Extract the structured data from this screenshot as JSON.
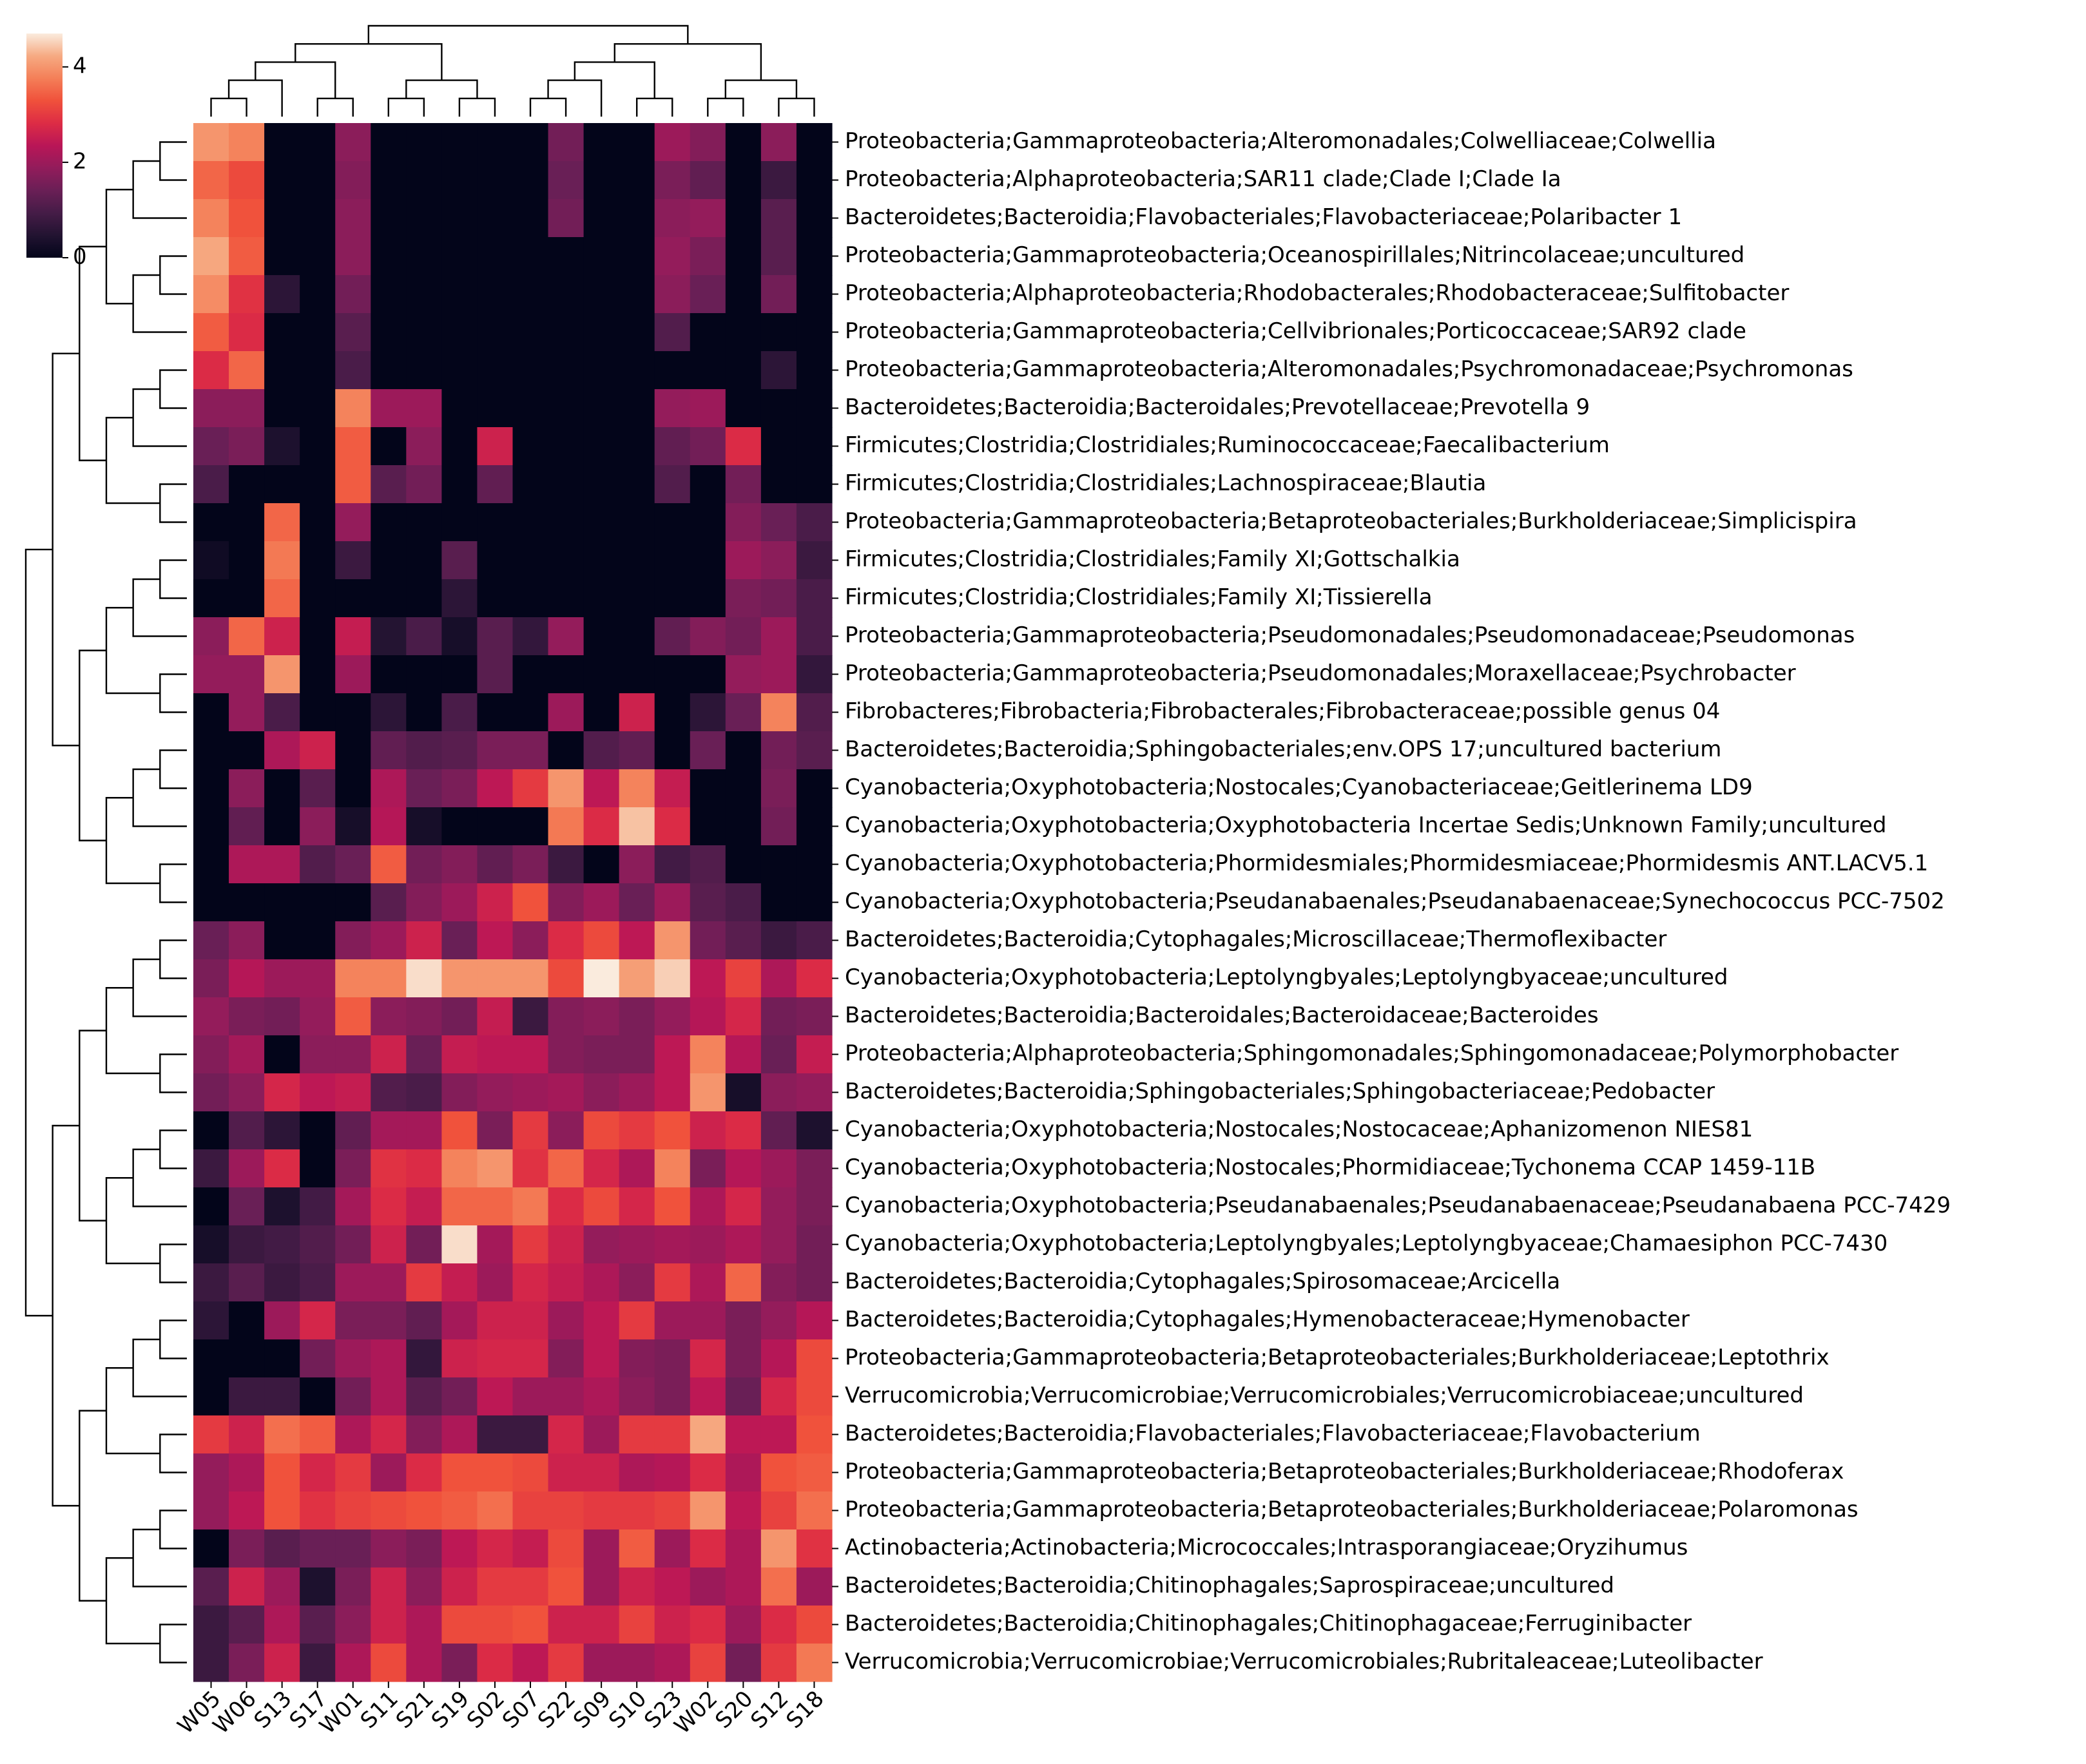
{
  "chart_data": {
    "type": "heatmap",
    "columns": [
      "W05",
      "W06",
      "S13",
      "S17",
      "W01",
      "S11",
      "S21",
      "S19",
      "S02",
      "S07",
      "S22",
      "S09",
      "S10",
      "S23",
      "W02",
      "S20",
      "S12",
      "S18"
    ],
    "rows": [
      "Proteobacteria;Gammaproteobacteria;Alteromonadales;Colwelliaceae;Colwellia",
      "Proteobacteria;Alphaproteobacteria;SAR11 clade;Clade I;Clade Ia",
      "Bacteroidetes;Bacteroidia;Flavobacteriales;Flavobacteriaceae;Polaribacter 1",
      "Proteobacteria;Gammaproteobacteria;Oceanospirillales;Nitrincolaceae;uncultured",
      "Proteobacteria;Alphaproteobacteria;Rhodobacterales;Rhodobacteraceae;Sulfitobacter",
      "Proteobacteria;Gammaproteobacteria;Cellvibrionales;Porticoccaceae;SAR92 clade",
      "Proteobacteria;Gammaproteobacteria;Alteromonadales;Psychromonadaceae;Psychromonas",
      "Bacteroidetes;Bacteroidia;Bacteroidales;Prevotellaceae;Prevotella 9",
      "Firmicutes;Clostridia;Clostridiales;Ruminococcaceae;Faecalibacterium",
      "Firmicutes;Clostridia;Clostridiales;Lachnospiraceae;Blautia",
      "Proteobacteria;Gammaproteobacteria;Betaproteobacteriales;Burkholderiaceae;Simplicispira",
      "Firmicutes;Clostridia;Clostridiales;Family XI;Gottschalkia",
      "Firmicutes;Clostridia;Clostridiales;Family XI;Tissierella",
      "Proteobacteria;Gammaproteobacteria;Pseudomonadales;Pseudomonadaceae;Pseudomonas",
      "Proteobacteria;Gammaproteobacteria;Pseudomonadales;Moraxellaceae;Psychrobacter",
      "Fibrobacteres;Fibrobacteria;Fibrobacterales;Fibrobacteraceae;possible genus 04",
      "Bacteroidetes;Bacteroidia;Sphingobacteriales;env.OPS 17;uncultured bacterium",
      "Cyanobacteria;Oxyphotobacteria;Nostocales;Cyanobacteriaceae;Geitlerinema LD9",
      "Cyanobacteria;Oxyphotobacteria;Oxyphotobacteria Incertae Sedis;Unknown Family;uncultured",
      "Cyanobacteria;Oxyphotobacteria;Phormidesmiales;Phormidesmiaceae;Phormidesmis ANT.LACV5.1",
      "Cyanobacteria;Oxyphotobacteria;Pseudanabaenales;Pseudanabaenaceae;Synechococcus PCC-7502",
      "Bacteroidetes;Bacteroidia;Cytophagales;Microscillaceae;Thermoflexibacter",
      "Cyanobacteria;Oxyphotobacteria;Leptolyngbyales;Leptolyngbyaceae;uncultured",
      "Bacteroidetes;Bacteroidia;Bacteroidales;Bacteroidaceae;Bacteroides",
      "Proteobacteria;Alphaproteobacteria;Sphingomonadales;Sphingomonadaceae;Polymorphobacter",
      "Bacteroidetes;Bacteroidia;Sphingobacteriales;Sphingobacteriaceae;Pedobacter",
      "Cyanobacteria;Oxyphotobacteria;Nostocales;Nostocaceae;Aphanizomenon NIES81",
      "Cyanobacteria;Oxyphotobacteria;Nostocales;Phormidiaceae;Tychonema CCAP 1459-11B",
      "Cyanobacteria;Oxyphotobacteria;Pseudanabaenales;Pseudanabaenaceae;Pseudanabaena PCC-7429",
      "Cyanobacteria;Oxyphotobacteria;Leptolyngbyales;Leptolyngbyaceae;Chamaesiphon PCC-7430",
      "Bacteroidetes;Bacteroidia;Cytophagales;Spirosomaceae;Arcicella",
      "Bacteroidetes;Bacteroidia;Cytophagales;Hymenobacteraceae;Hymenobacter",
      "Proteobacteria;Gammaproteobacteria;Betaproteobacteriales;Burkholderiaceae;Leptothrix",
      "Verrucomicrobia;Verrucomicrobiae;Verrucomicrobiales;Verrucomicrobiaceae;uncultured",
      "Bacteroidetes;Bacteroidia;Flavobacteriales;Flavobacteriaceae;Flavobacterium",
      "Proteobacteria;Gammaproteobacteria;Betaproteobacteriales;Burkholderiaceae;Rhodoferax",
      "Proteobacteria;Gammaproteobacteria;Betaproteobacteriales;Burkholderiaceae;Polaromonas",
      "Actinobacteria;Actinobacteria;Micrococcales;Intrasporangiaceae;Oryzihumus",
      "Bacteroidetes;Bacteroidia;Chitinophagales;Saprospiraceae;uncultured",
      "Bacteroidetes;Bacteroidia;Chitinophagales;Chitinophagaceae;Ferruginibacter",
      "Verrucomicrobia;Verrucomicrobiae;Verrucomicrobiales;Rubritaleaceae;Luteolibacter"
    ],
    "values": [
      [
        4.0,
        3.8,
        0,
        0,
        1.8,
        0,
        0,
        0,
        0,
        0,
        1.5,
        0,
        0,
        2.0,
        1.7,
        0,
        1.8,
        0
      ],
      [
        3.5,
        3.2,
        0,
        0,
        1.7,
        0,
        0,
        0,
        0,
        0,
        1.4,
        0,
        0,
        1.6,
        1.3,
        0,
        0.8,
        0
      ],
      [
        3.8,
        3.3,
        0,
        0,
        1.8,
        0,
        0,
        0,
        0,
        0,
        1.5,
        0,
        0,
        1.8,
        1.9,
        0,
        1.2,
        0
      ],
      [
        4.2,
        3.4,
        0,
        0,
        1.8,
        0,
        0,
        0,
        0,
        0,
        0,
        0,
        0,
        1.9,
        1.6,
        0,
        1.2,
        0
      ],
      [
        3.9,
        2.9,
        0.6,
        0,
        1.5,
        0,
        0,
        0,
        0,
        0,
        0,
        0,
        0,
        1.8,
        1.4,
        0,
        1.5,
        0
      ],
      [
        3.4,
        2.8,
        0,
        0,
        1.2,
        0,
        0,
        0,
        0,
        0,
        0,
        0,
        0,
        1.1,
        0,
        0,
        0,
        0
      ],
      [
        2.8,
        3.5,
        0,
        0,
        1.0,
        0,
        0,
        0,
        0,
        0,
        0,
        0,
        0,
        0,
        0,
        0,
        0.6,
        0
      ],
      [
        1.8,
        1.8,
        0,
        0,
        3.8,
        2.0,
        2.0,
        0,
        0,
        0,
        0,
        0,
        0,
        1.9,
        2.0,
        0,
        0,
        0
      ],
      [
        1.4,
        1.6,
        0.4,
        0,
        3.4,
        0,
        1.8,
        0,
        2.6,
        0,
        0,
        0,
        0,
        1.3,
        1.5,
        2.8,
        0,
        0
      ],
      [
        1.0,
        0,
        0,
        0,
        3.4,
        1.2,
        1.5,
        0,
        1.3,
        0,
        0,
        0,
        0,
        1.1,
        0,
        1.5,
        0,
        0
      ],
      [
        0,
        0,
        3.5,
        0,
        1.9,
        0,
        0,
        0,
        0,
        0,
        0,
        0,
        0,
        0,
        0,
        1.7,
        1.4,
        1.0
      ],
      [
        0.2,
        0,
        3.7,
        0,
        0.8,
        0,
        0,
        1.2,
        0,
        0,
        0,
        0,
        0,
        0,
        0,
        2.0,
        1.8,
        0.8
      ],
      [
        0,
        0,
        3.5,
        0,
        0,
        0,
        0,
        0.6,
        0,
        0,
        0,
        0,
        0,
        0,
        0,
        1.6,
        1.5,
        1.0
      ],
      [
        1.8,
        3.5,
        2.6,
        0,
        2.5,
        0.5,
        1.0,
        0.3,
        1.2,
        0.7,
        1.9,
        0,
        0,
        1.3,
        1.7,
        1.5,
        2.0,
        1.0
      ],
      [
        1.9,
        1.9,
        4.0,
        0,
        2.0,
        0,
        0,
        0,
        1.2,
        0,
        0,
        0,
        0,
        0,
        0,
        1.9,
        2.0,
        0.7
      ],
      [
        0,
        1.9,
        1.0,
        0,
        0,
        0.6,
        0,
        1.0,
        0,
        0,
        2.0,
        0,
        2.6,
        0,
        0.6,
        1.4,
        3.8,
        1.1
      ],
      [
        0,
        0,
        2.2,
        2.6,
        0,
        1.3,
        1.1,
        1.2,
        1.6,
        1.6,
        0,
        1.1,
        1.3,
        0,
        1.4,
        0,
        1.5,
        1.2
      ],
      [
        0,
        1.8,
        0,
        1.2,
        0,
        2.2,
        1.4,
        1.6,
        2.4,
        3.0,
        4.0,
        2.4,
        3.8,
        2.5,
        0,
        0,
        1.6,
        0
      ],
      [
        0,
        1.3,
        0,
        1.8,
        0.3,
        2.3,
        0.3,
        0,
        0,
        0,
        3.7,
        2.8,
        4.4,
        2.8,
        0,
        0,
        1.5,
        0
      ],
      [
        0,
        2.2,
        2.2,
        1.1,
        1.4,
        3.4,
        1.5,
        1.7,
        1.3,
        1.6,
        0.8,
        0,
        1.8,
        0.9,
        1.1,
        0,
        0,
        0
      ],
      [
        0,
        0,
        0,
        0,
        0,
        1.2,
        1.7,
        2.0,
        2.6,
        3.3,
        1.7,
        2.0,
        1.4,
        2.0,
        1.2,
        1.0,
        0,
        0
      ],
      [
        1.4,
        1.8,
        0,
        0,
        1.7,
        2.0,
        2.6,
        1.4,
        2.4,
        1.8,
        2.8,
        3.2,
        2.4,
        4.0,
        1.5,
        1.2,
        0.8,
        1.0
      ],
      [
        1.6,
        2.3,
        2.0,
        2.0,
        3.8,
        3.8,
        4.6,
        4.0,
        4.0,
        4.0,
        3.2,
        4.7,
        4.1,
        4.5,
        2.4,
        3.1,
        2.2,
        2.8
      ],
      [
        1.9,
        1.6,
        1.5,
        1.9,
        3.4,
        1.8,
        1.7,
        1.5,
        2.5,
        0.8,
        1.7,
        1.8,
        1.6,
        1.9,
        2.3,
        2.7,
        1.5,
        1.6
      ],
      [
        1.7,
        2.1,
        0,
        1.8,
        1.8,
        2.6,
        1.4,
        2.5,
        2.4,
        2.4,
        1.7,
        1.6,
        1.6,
        2.4,
        3.8,
        2.3,
        1.4,
        2.5
      ],
      [
        1.5,
        1.8,
        2.7,
        2.4,
        2.5,
        1.1,
        1.0,
        1.7,
        1.9,
        2.0,
        2.1,
        1.8,
        2.0,
        2.4,
        4.0,
        0.3,
        1.8,
        1.9
      ],
      [
        0,
        1.1,
        0.6,
        0,
        1.3,
        2.1,
        2.1,
        3.3,
        1.6,
        3.0,
        1.8,
        3.2,
        3.0,
        3.3,
        2.6,
        2.8,
        1.3,
        0.4
      ],
      [
        0.8,
        2.0,
        2.8,
        0,
        1.6,
        2.9,
        2.8,
        3.8,
        4.0,
        2.9,
        3.5,
        2.7,
        2.2,
        3.8,
        1.6,
        2.3,
        2.0,
        1.6
      ],
      [
        0,
        1.4,
        0.4,
        0.9,
        2.1,
        2.8,
        2.5,
        3.5,
        3.5,
        3.7,
        2.8,
        3.2,
        2.7,
        3.3,
        2.2,
        2.7,
        1.9,
        1.6
      ],
      [
        0.3,
        0.8,
        0.9,
        1.1,
        1.5,
        2.6,
        1.5,
        4.6,
        2.1,
        3.0,
        2.6,
        1.9,
        2.0,
        2.1,
        2.0,
        2.2,
        1.9,
        1.5
      ],
      [
        0.8,
        1.2,
        0.8,
        1.0,
        2.0,
        2.0,
        3.0,
        2.5,
        2.0,
        2.7,
        2.5,
        2.2,
        1.8,
        3.0,
        2.2,
        3.5,
        1.7,
        1.5
      ],
      [
        0.6,
        0,
        2.0,
        2.7,
        1.6,
        1.6,
        1.3,
        2.1,
        2.6,
        2.6,
        2.0,
        2.4,
        3.0,
        2.0,
        2.0,
        1.6,
        1.9,
        2.3
      ],
      [
        0,
        0,
        0,
        1.5,
        2.0,
        2.2,
        0.7,
        2.6,
        2.7,
        2.7,
        1.7,
        2.4,
        1.7,
        1.6,
        2.7,
        1.6,
        2.3,
        3.2
      ],
      [
        0,
        0.8,
        0.8,
        0,
        1.5,
        2.2,
        1.2,
        1.5,
        2.4,
        2.0,
        2.0,
        2.2,
        1.8,
        1.6,
        2.4,
        1.4,
        2.7,
        3.2
      ],
      [
        3.0,
        2.6,
        3.6,
        3.4,
        2.2,
        2.7,
        1.7,
        2.2,
        0.8,
        0.8,
        2.7,
        2.0,
        3.0,
        3.0,
        4.2,
        2.4,
        2.4,
        3.3
      ],
      [
        1.9,
        2.2,
        3.3,
        2.7,
        3.0,
        2.0,
        2.8,
        3.3,
        3.3,
        3.2,
        2.6,
        2.6,
        2.2,
        2.3,
        2.8,
        2.2,
        3.3,
        3.4
      ],
      [
        1.9,
        2.4,
        3.3,
        2.9,
        3.1,
        3.2,
        3.3,
        3.4,
        3.6,
        3.1,
        3.1,
        3.0,
        3.0,
        3.1,
        4.0,
        2.4,
        3.1,
        3.6
      ],
      [
        0,
        1.6,
        1.2,
        1.4,
        1.4,
        1.8,
        1.6,
        2.4,
        2.7,
        2.5,
        3.2,
        2.0,
        3.4,
        2.0,
        2.8,
        2.2,
        4.0,
        2.9
      ],
      [
        1.2,
        2.6,
        2.0,
        0.4,
        1.6,
        2.6,
        1.8,
        2.6,
        3.0,
        3.0,
        3.3,
        2.0,
        2.6,
        2.4,
        2.0,
        2.2,
        3.6,
        2.0
      ],
      [
        0.8,
        1.2,
        2.2,
        1.2,
        1.8,
        2.6,
        2.2,
        3.2,
        3.2,
        3.3,
        2.6,
        2.6,
        3.1,
        2.6,
        2.8,
        2.0,
        2.8,
        3.2
      ],
      [
        0.8,
        1.6,
        2.6,
        0.8,
        2.2,
        3.2,
        2.2,
        1.6,
        2.8,
        2.4,
        3.0,
        2.0,
        2.0,
        2.2,
        3.1,
        1.5,
        3.0,
        3.7
      ]
    ],
    "clim": [
      0,
      4.7
    ],
    "cticks": [
      0,
      2,
      4
    ],
    "colormap": [
      "#03051a",
      "#221331",
      "#451c47",
      "#6a1f56",
      "#921c5b",
      "#b91657",
      "#dd2c45",
      "#f0513b",
      "#f47f58",
      "#f6aa82",
      "#faebdd"
    ]
  }
}
